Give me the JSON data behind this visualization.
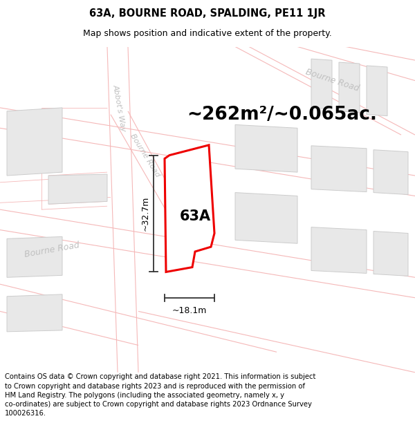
{
  "title": "63A, BOURNE ROAD, SPALDING, PE11 1JR",
  "subtitle": "Map shows position and indicative extent of the property.",
  "area_text": "~262m²/~0.065ac.",
  "label_63a": "63A",
  "dim_height": "~32.7m",
  "dim_width": "~18.1m",
  "footer": "Contains OS data © Crown copyright and database right 2021. This information is subject to Crown copyright and database rights 2023 and is reproduced with the permission of HM Land Registry. The polygons (including the associated geometry, namely x, y co-ordinates) are subject to Crown copyright and database rights 2023 Ordnance Survey 100026316.",
  "bg_color": "#ffffff",
  "map_bg": "#ffffff",
  "road_line_color": "#f5b8b8",
  "road_label_color": "#c0c0c0",
  "building_fill": "#e8e8e8",
  "building_edge": "#cccccc",
  "plot_color": "#ee0000",
  "plot_fill": "#ffffff",
  "dim_color": "#333333",
  "title_color": "#000000",
  "footer_color": "#000000",
  "title_fontsize": 10.5,
  "subtitle_fontsize": 9,
  "area_fontsize": 19,
  "label_fontsize": 15,
  "dim_fontsize": 9,
  "footer_fontsize": 7.2,
  "road_label_fontsize": 9,
  "road_label_fontsize_sm": 8
}
